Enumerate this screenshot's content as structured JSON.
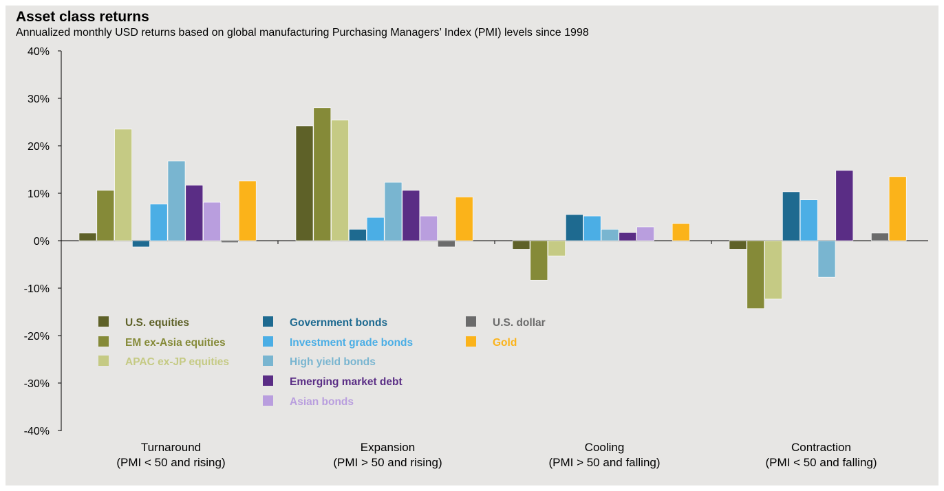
{
  "chart_data": {
    "type": "bar",
    "title": "Asset class returns",
    "subtitle": "Annualized monthly USD returns based on global manufacturing Purchasing Managers’ Index (PMI) levels since 1998",
    "xlabel": "",
    "ylabel": "",
    "ylim": [
      -40,
      40
    ],
    "yticks": [
      40,
      30,
      20,
      10,
      0,
      -10,
      -20,
      -30,
      -40
    ],
    "ytick_labels": [
      "40%",
      "30%",
      "20%",
      "10%",
      "0%",
      "-10%",
      "-20%",
      "-30%",
      "-40%"
    ],
    "categories": [
      {
        "name": "Turnaround",
        "detail": "(PMI < 50 and rising)"
      },
      {
        "name": "Expansion",
        "detail": "(PMI > 50 and rising)"
      },
      {
        "name": "Cooling",
        "detail": "(PMI > 50 and falling)"
      },
      {
        "name": "Contraction",
        "detail": "(PMI < 50 and falling)"
      }
    ],
    "series": [
      {
        "name": "U.S. equities",
        "color": "#5e6128",
        "values": [
          1.6,
          24.2,
          -1.8,
          -1.8
        ]
      },
      {
        "name": "EM ex-Asia equities",
        "color": "#858a38",
        "values": [
          10.6,
          28.0,
          -8.3,
          -14.3
        ]
      },
      {
        "name": "APAC ex-JP equities",
        "color": "#c5ca84",
        "values": [
          23.5,
          25.4,
          -3.2,
          -12.3
        ]
      },
      {
        "name": "Government bonds",
        "color": "#1e6a90",
        "values": [
          -1.3,
          2.4,
          5.5,
          10.3
        ]
      },
      {
        "name": "Investment grade bonds",
        "color": "#4baee5",
        "values": [
          7.7,
          4.9,
          5.2,
          8.6
        ]
      },
      {
        "name": "High yield bonds",
        "color": "#79b5d0",
        "values": [
          16.8,
          12.3,
          2.4,
          -7.7
        ]
      },
      {
        "name": "Emerging market debt",
        "color": "#5a2d85",
        "values": [
          11.7,
          10.6,
          1.7,
          14.8
        ]
      },
      {
        "name": "Asian bonds",
        "color": "#b99ede",
        "values": [
          8.1,
          5.2,
          2.9,
          0
        ]
      },
      {
        "name": "U.S. dollar",
        "color": "#6b6b6b",
        "values": [
          -0.4,
          -1.3,
          0,
          1.6
        ]
      },
      {
        "name": "Gold",
        "color": "#fbb31a",
        "values": [
          12.6,
          9.2,
          3.6,
          13.5
        ]
      }
    ],
    "legend_placement": "lower-left"
  }
}
